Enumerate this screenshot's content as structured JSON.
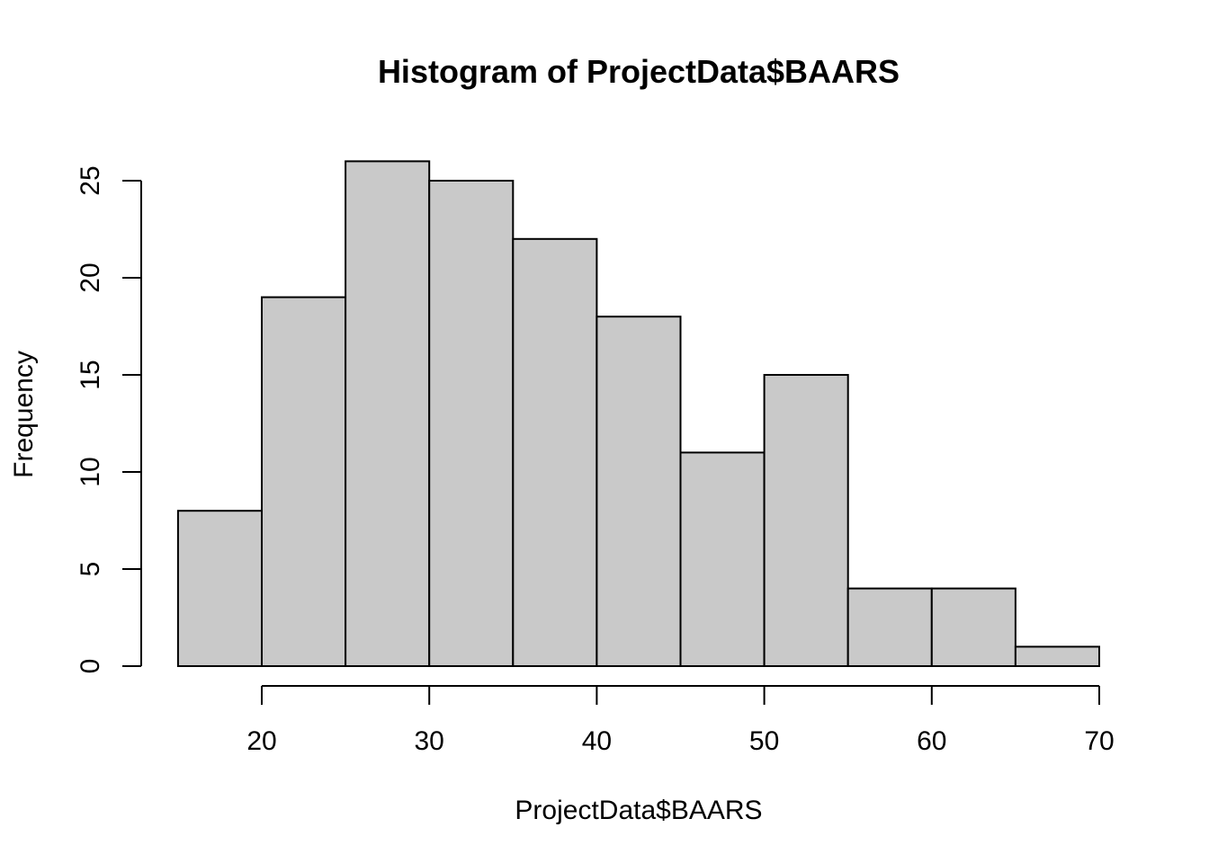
{
  "chart_data": {
    "type": "bar",
    "subtype": "histogram",
    "title": "Histogram of ProjectData$BAARS",
    "xlabel": "ProjectData$BAARS",
    "ylabel": "Frequency",
    "bins": [
      {
        "x0": 15,
        "x1": 20,
        "count": 8
      },
      {
        "x0": 20,
        "x1": 25,
        "count": 19
      },
      {
        "x0": 25,
        "x1": 30,
        "count": 26
      },
      {
        "x0": 30,
        "x1": 35,
        "count": 25
      },
      {
        "x0": 35,
        "x1": 40,
        "count": 22
      },
      {
        "x0": 40,
        "x1": 45,
        "count": 18
      },
      {
        "x0": 45,
        "x1": 50,
        "count": 11
      },
      {
        "x0": 50,
        "x1": 55,
        "count": 15
      },
      {
        "x0": 55,
        "x1": 60,
        "count": 4
      },
      {
        "x0": 60,
        "x1": 65,
        "count": 4
      },
      {
        "x0": 65,
        "x1": 70,
        "count": 1
      }
    ],
    "xlim": [
      15,
      70
    ],
    "ylim": [
      0,
      26
    ],
    "x_ticks": [
      20,
      30,
      40,
      50,
      60,
      70
    ],
    "y_ticks": [
      0,
      5,
      10,
      15,
      20,
      25
    ],
    "grid": false,
    "bar_fill": "#c9c9c9",
    "bar_stroke": "#000000"
  }
}
